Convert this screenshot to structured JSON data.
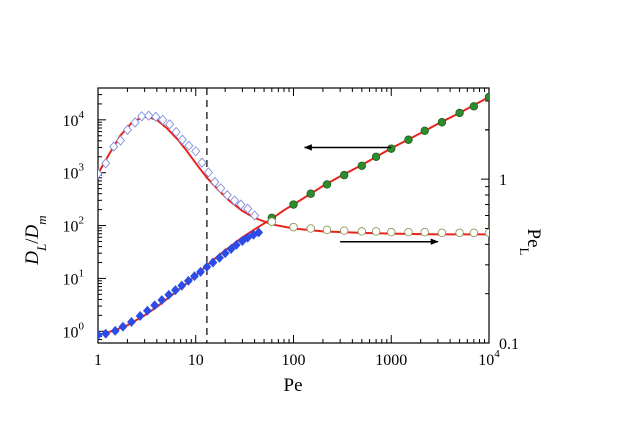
{
  "chart_data": {
    "type": "scatter",
    "xlabel": "Pe",
    "ylabel_left": {
      "base": "D",
      "sub1": "L",
      "slash": "/",
      "base2": "D",
      "sub2": "m"
    },
    "ylabel_right": {
      "base": "Pe",
      "sub": "L"
    },
    "x_scale": "log",
    "xlim": [
      1,
      10000
    ],
    "ylim_left": [
      0.6,
      40000
    ],
    "ylim_right": [
      0.1,
      3.6
    ],
    "x_ticks": [
      {
        "value": 1,
        "label": "1"
      },
      {
        "value": 10,
        "label": "10"
      },
      {
        "value": 100,
        "label": "100"
      },
      {
        "value": 1000,
        "label": "1000"
      },
      {
        "value": 10000,
        "label_base": "10",
        "label_exp": "4"
      }
    ],
    "y_left_ticks": [
      {
        "value": 1,
        "base": "10",
        "exp": "0"
      },
      {
        "value": 10,
        "base": "10",
        "exp": "1"
      },
      {
        "value": 100,
        "base": "10",
        "exp": "2"
      },
      {
        "value": 1000,
        "base": "10",
        "exp": "3"
      },
      {
        "value": 10000,
        "base": "10",
        "exp": "4"
      }
    ],
    "y_right_ticks": [
      {
        "value": 1,
        "label": "1"
      },
      {
        "value": 0.1,
        "label": "0.1"
      }
    ],
    "vline_x": 13,
    "series": [
      {
        "name": "D_L/D_m fit",
        "axis": "left",
        "style": "line",
        "color": "#e8241c",
        "x": [
          1,
          1.5,
          2,
          3,
          4,
          6,
          8,
          10,
          13,
          17,
          20,
          30,
          40,
          60,
          80,
          100,
          150,
          200,
          300,
          500,
          1000,
          2000,
          3000,
          5000,
          10000
        ],
        "y": [
          0.85,
          1.05,
          1.3,
          2.0,
          2.9,
          5.2,
          8.0,
          11.5,
          17.5,
          27,
          34,
          60,
          85,
          135,
          195,
          250,
          400,
          560,
          850,
          1400,
          2900,
          5600,
          8400,
          13500,
          27000
        ]
      },
      {
        "name": "D_L/D_m simulation",
        "axis": "left",
        "style": "diamond",
        "color": "#2b4ce6",
        "x": [
          1,
          1.2,
          1.5,
          1.8,
          2.2,
          2.7,
          3.2,
          3.8,
          4.5,
          5.3,
          6.2,
          7.2,
          8.4,
          9.7,
          11.2,
          13,
          15,
          17.5,
          20,
          23,
          26,
          30,
          34,
          39,
          44
        ],
        "y": [
          0.85,
          0.9,
          1.02,
          1.22,
          1.5,
          1.95,
          2.45,
          3.1,
          3.9,
          4.9,
          6.0,
          7.3,
          9.0,
          11.0,
          13.3,
          16.5,
          20,
          24.5,
          30,
          36,
          43,
          51,
          59,
          67,
          74
        ]
      },
      {
        "name": "D_L/D_m experiment",
        "axis": "left",
        "style": "filled-circle",
        "color": "#2e8b2e",
        "x": [
          60,
          100,
          150,
          220,
          330,
          500,
          700,
          1000,
          1500,
          2200,
          3300,
          5000,
          7000,
          10000
        ],
        "y": [
          140,
          250,
          400,
          600,
          900,
          1350,
          2000,
          2850,
          4200,
          6200,
          9000,
          13500,
          18000,
          27000
        ]
      },
      {
        "name": "Pe_L fit",
        "axis": "right",
        "style": "line",
        "color": "#e8241c",
        "x": [
          1,
          1.3,
          1.7,
          2.2,
          2.8,
          3.2,
          4,
          5,
          6.5,
          8,
          10,
          13,
          17,
          22,
          30,
          40,
          60,
          100,
          200,
          500,
          1000,
          3000,
          10000
        ],
        "y": [
          1.08,
          1.42,
          1.85,
          2.2,
          2.38,
          2.4,
          2.3,
          2.06,
          1.75,
          1.5,
          1.25,
          1.02,
          0.86,
          0.74,
          0.64,
          0.58,
          0.53,
          0.5,
          0.48,
          0.47,
          0.465,
          0.46,
          0.46
        ]
      },
      {
        "name": "Pe_L simulation",
        "axis": "right",
        "style": "open-diamond",
        "color": "#7f8fe0",
        "x": [
          1,
          1.2,
          1.45,
          1.7,
          2,
          2.4,
          2.8,
          3.3,
          3.9,
          4.6,
          5.4,
          6.3,
          7.3,
          8.5,
          10,
          11.6,
          13.5,
          15.7,
          18,
          21,
          25,
          29,
          34,
          40
        ],
        "y": [
          1.08,
          1.25,
          1.58,
          1.72,
          2.0,
          2.22,
          2.42,
          2.44,
          2.4,
          2.3,
          2.16,
          1.94,
          1.74,
          1.6,
          1.48,
          1.26,
          1.1,
          0.96,
          0.88,
          0.8,
          0.74,
          0.7,
          0.66,
          0.6
        ]
      },
      {
        "name": "Pe_L experiment",
        "axis": "right",
        "style": "open-circle",
        "color": "#8a9a5b",
        "x": [
          60,
          100,
          150,
          220,
          330,
          500,
          700,
          1000,
          1500,
          2200,
          3300,
          5000,
          7000,
          10000
        ],
        "y": [
          0.55,
          0.51,
          0.5,
          0.49,
          0.485,
          0.48,
          0.48,
          0.475,
          0.475,
          0.475,
          0.47,
          0.47,
          0.47,
          0.47
        ]
      }
    ],
    "annotations": [
      {
        "type": "arrow",
        "direction": "left",
        "from_x": 1000,
        "to_x": 130,
        "at_left_y": 3000
      },
      {
        "type": "arrow",
        "direction": "right",
        "from_x": 300,
        "to_x": 3000,
        "at_right_y": 0.415
      }
    ]
  }
}
